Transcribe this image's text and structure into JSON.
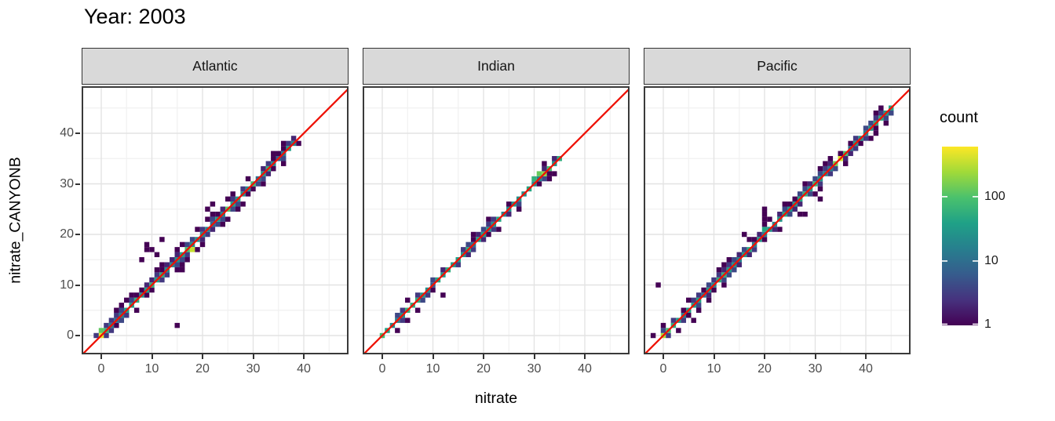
{
  "title": "Year: 2003",
  "axes": {
    "x_label": "nitrate",
    "y_label": "nitrate_CANYONB"
  },
  "legend": {
    "title": "count",
    "ticks": [
      100,
      10,
      1
    ],
    "scale": "log10",
    "domain": [
      1,
      600
    ]
  },
  "colors": {
    "background": "#ffffff",
    "strip_fill": "#d9d9d9",
    "strip_border": "#333333",
    "panel_border": "#3a3a3a",
    "grid_major": "#e3e3e3",
    "grid_minor": "#f1f1f1",
    "axis_text": "#4d4d4d",
    "tick_mark": "#333333",
    "reference_line": "#ee1100",
    "viridis": [
      "#440154",
      "#46327e",
      "#365c8d",
      "#277f8e",
      "#1fa187",
      "#4ac16d",
      "#a0da39",
      "#fde725"
    ]
  },
  "chart_data": {
    "type": "heatmap",
    "subtype": "bin2d",
    "title": "Year: 2003",
    "xlabel": "nitrate",
    "ylabel": "nitrate_CANYONB",
    "x_range": [
      -3.9,
      48.8
    ],
    "y_range": [
      -3.9,
      49.3
    ],
    "x_ticks": [
      0,
      10,
      20,
      30,
      40
    ],
    "y_ticks": [
      0,
      10,
      20,
      30,
      40
    ],
    "minor_ticks": [
      5,
      15,
      25,
      35,
      45
    ],
    "bin_width": 1,
    "grid": true,
    "legend_position": "right",
    "color_scale": {
      "name": "viridis",
      "transform": "log10",
      "domain": [
        1,
        600
      ],
      "legend_ticks": [
        100,
        10,
        1
      ]
    },
    "reference_line": {
      "type": "y=x",
      "color": "red"
    },
    "panels": [
      {
        "label": "Atlantic",
        "seed": 11,
        "diagonal_range": [
          0,
          38
        ],
        "near_prob": 0.5,
        "far_prob": 0.12,
        "hotspots": [
          [
            0,
            0,
            500
          ],
          [
            0,
            1,
            120
          ],
          [
            1,
            1,
            70
          ],
          [
            10,
            10,
            60
          ],
          [
            17,
            17,
            90
          ],
          [
            18,
            17,
            350
          ],
          [
            25,
            25,
            110
          ],
          [
            30,
            30,
            80
          ],
          [
            33,
            33,
            60
          ]
        ],
        "outliers": [
          [
            15,
            2
          ],
          [
            9,
            17
          ],
          [
            10,
            17
          ],
          [
            9,
            18
          ],
          [
            11,
            16
          ],
          [
            12,
            19
          ],
          [
            8,
            15
          ],
          [
            21,
            25
          ],
          [
            22,
            26
          ],
          [
            16,
            13
          ]
        ]
      },
      {
        "label": "Indian",
        "seed": 7,
        "diagonal_range": [
          0,
          35
        ],
        "near_prob": 0.28,
        "far_prob": 0.05,
        "hotspots": [
          [
            0,
            0,
            80
          ],
          [
            1,
            1,
            40
          ],
          [
            21,
            21,
            30
          ],
          [
            30,
            31,
            60
          ],
          [
            31,
            32,
            130
          ],
          [
            32,
            32,
            200
          ],
          [
            33,
            33,
            90
          ]
        ],
        "outliers": [
          [
            12,
            8
          ],
          [
            33,
            31
          ],
          [
            25,
            26
          ]
        ]
      },
      {
        "label": "Pacific",
        "seed": 23,
        "diagonal_range": [
          0,
          45
        ],
        "near_prob": 0.45,
        "far_prob": 0.1,
        "hotspots": [
          [
            0,
            0,
            280
          ],
          [
            1,
            1,
            90
          ],
          [
            20,
            21,
            45
          ],
          [
            30,
            30,
            70
          ],
          [
            34,
            34,
            150
          ],
          [
            35,
            35,
            420
          ],
          [
            36,
            36,
            90
          ],
          [
            43,
            43,
            50
          ],
          [
            44,
            44,
            35
          ]
        ],
        "outliers": [
          [
            -1,
            10
          ],
          [
            20,
            23
          ],
          [
            20,
            24
          ],
          [
            20,
            25
          ],
          [
            21,
            23
          ],
          [
            27,
            24
          ],
          [
            28,
            24
          ],
          [
            31,
            27
          ],
          [
            16,
            20
          ],
          [
            3,
            1
          ],
          [
            6,
            3
          ]
        ]
      }
    ]
  }
}
